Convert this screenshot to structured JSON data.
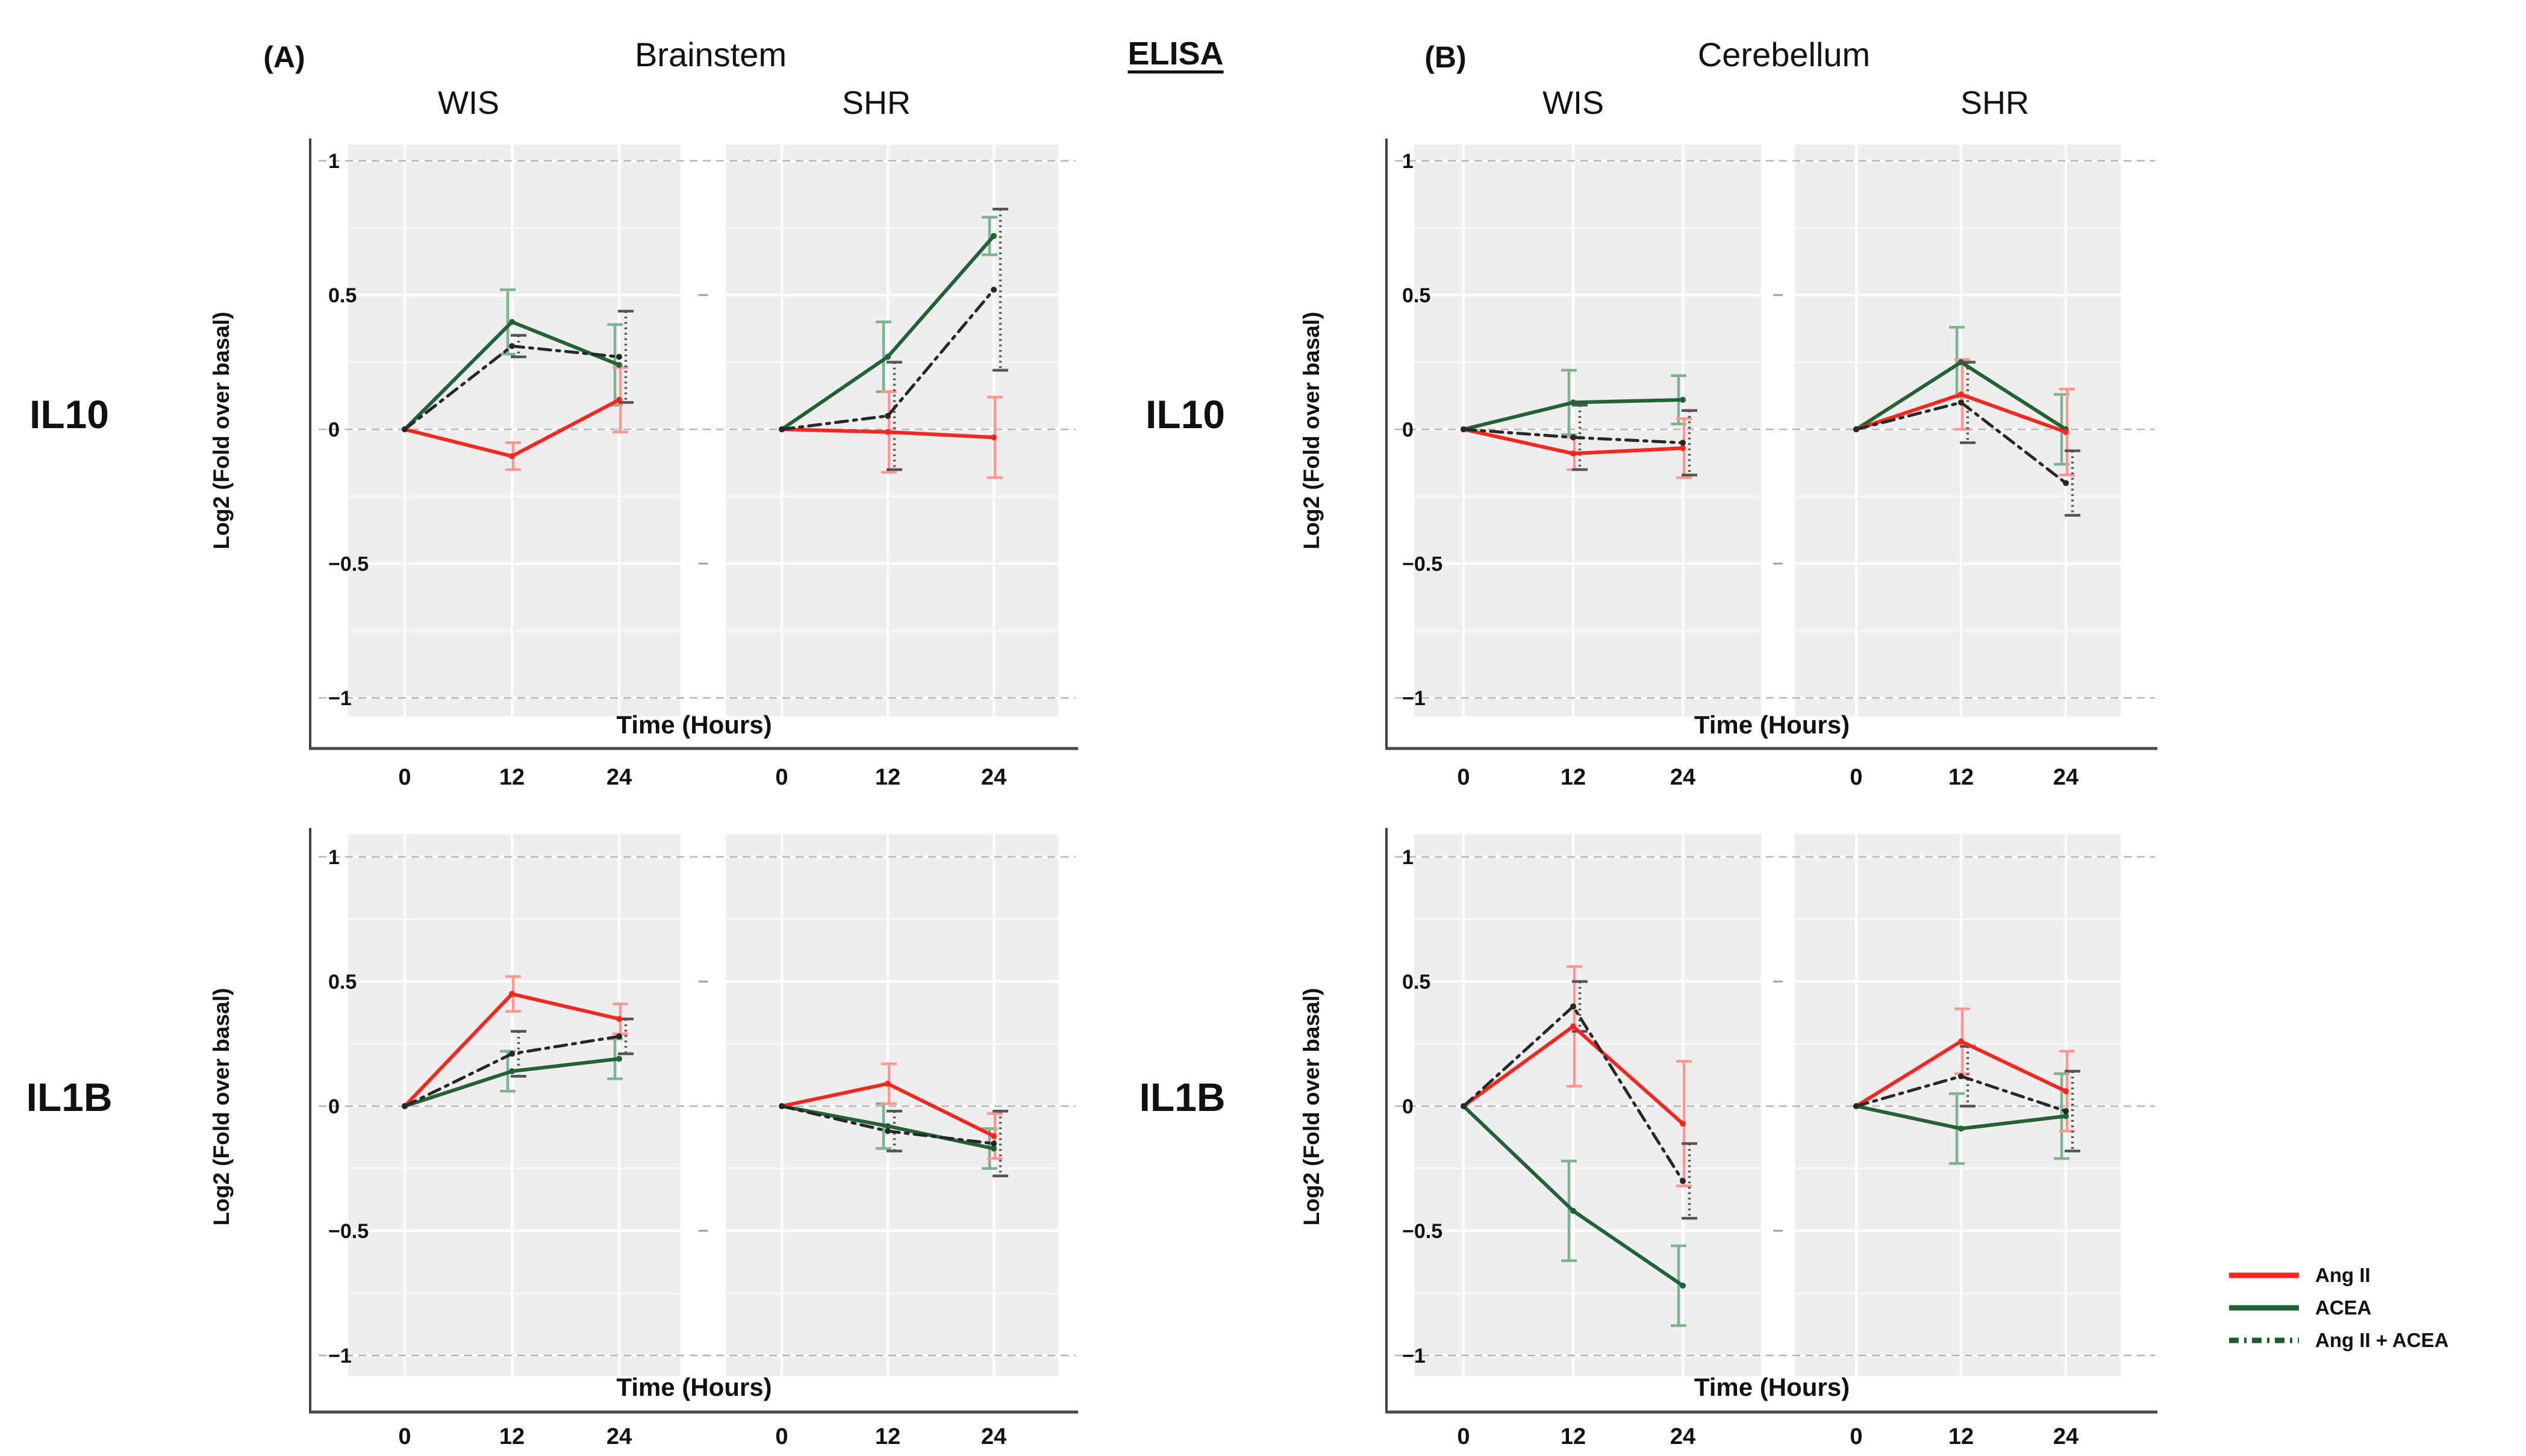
{
  "figure": {
    "panel_a_label": "(A)",
    "panel_b_label": "(B)",
    "title_a": "Brainstem",
    "title_b": "Cerebellum",
    "method_label": "ELISA",
    "col_labels": [
      "WIS",
      "SHR"
    ],
    "row_labels": [
      "IL10",
      "IL1B"
    ],
    "ylabel": "Log2 (Fold over basal)",
    "xlabel": "Time (Hours)",
    "x_ticks": [
      "0",
      "12",
      "24"
    ],
    "y_ticks": [
      "1",
      "0.5",
      "0",
      "−0.5",
      "−1"
    ]
  },
  "legend": {
    "items": [
      {
        "label": "Ang II",
        "key": "angii",
        "style": "solid"
      },
      {
        "label": "ACEA",
        "key": "acea",
        "style": "solid"
      },
      {
        "label": "Ang II + ACEA",
        "key": "combo",
        "style": "dashdot"
      }
    ]
  },
  "colors": {
    "angii": "#f7271d",
    "acea": "#226336",
    "combo": "#282828",
    "legend_combo": "#1d5c2c",
    "angii_err": "#ff978f",
    "acea_err": "#7fb38c",
    "combo_err": "#555555",
    "panel_bg": "#efeeee",
    "grid_dash": "#b3b3b3",
    "axis": "#404040",
    "text": "#111111"
  },
  "chart_data": [
    {
      "type": "line",
      "title": "Brainstem IL10",
      "region": "Brainstem",
      "cytokine": "IL10",
      "x": [
        0,
        12,
        24
      ],
      "xlabel": "Time (Hours)",
      "ylabel": "Log2 (Fold over basal)",
      "ylim": [
        -1.1,
        1.1
      ],
      "grid": true,
      "legend_position": "figure-bottom-right",
      "facets": [
        {
          "name": "WIS",
          "series": [
            {
              "key": "angii",
              "name": "Ang II",
              "values": [
                0,
                -0.1,
                0.11
              ],
              "errors": [
                0,
                0.05,
                0.12
              ]
            },
            {
              "key": "acea",
              "name": "ACEA",
              "values": [
                0,
                0.4,
                0.24
              ],
              "errors": [
                0,
                0.12,
                0.15
              ]
            },
            {
              "key": "combo",
              "name": "Ang II + ACEA",
              "values": [
                0,
                0.31,
                0.27
              ],
              "errors": [
                0,
                0.04,
                0.17
              ]
            }
          ]
        },
        {
          "name": "SHR",
          "series": [
            {
              "key": "angii",
              "name": "Ang II",
              "values": [
                0,
                -0.01,
                -0.03
              ],
              "errors": [
                0,
                0.15,
                0.15
              ]
            },
            {
              "key": "acea",
              "name": "ACEA",
              "values": [
                0,
                0.27,
                0.72
              ],
              "errors": [
                0,
                0.13,
                0.07
              ]
            },
            {
              "key": "combo",
              "name": "Ang II + ACEA",
              "values": [
                0,
                0.05,
                0.52
              ],
              "errors": [
                0,
                0.2,
                0.3
              ]
            }
          ]
        }
      ]
    },
    {
      "type": "line",
      "title": "Brainstem IL1B",
      "region": "Brainstem",
      "cytokine": "IL1B",
      "x": [
        0,
        12,
        24
      ],
      "xlabel": "Time (Hours)",
      "ylabel": "Log2 (Fold over basal)",
      "ylim": [
        -1.1,
        1.1
      ],
      "grid": true,
      "facets": [
        {
          "name": "WIS",
          "series": [
            {
              "key": "angii",
              "name": "Ang II",
              "values": [
                0,
                0.45,
                0.35
              ],
              "errors": [
                0,
                0.07,
                0.06
              ]
            },
            {
              "key": "acea",
              "name": "ACEA",
              "values": [
                0,
                0.14,
                0.19
              ],
              "errors": [
                0,
                0.08,
                0.08
              ]
            },
            {
              "key": "combo",
              "name": "Ang II + ACEA",
              "values": [
                0,
                0.21,
                0.28
              ],
              "errors": [
                0,
                0.09,
                0.07
              ]
            }
          ]
        },
        {
          "name": "SHR",
          "series": [
            {
              "key": "angii",
              "name": "Ang II",
              "values": [
                0,
                0.09,
                -0.12
              ],
              "errors": [
                0,
                0.08,
                0.09
              ]
            },
            {
              "key": "acea",
              "name": "ACEA",
              "values": [
                0,
                -0.08,
                -0.17
              ],
              "errors": [
                0,
                0.09,
                0.08
              ]
            },
            {
              "key": "combo",
              "name": "Ang II + ACEA",
              "values": [
                0,
                -0.1,
                -0.15
              ],
              "errors": [
                0,
                0.08,
                0.13
              ]
            }
          ]
        }
      ]
    },
    {
      "type": "line",
      "title": "Cerebellum IL10",
      "region": "Cerebellum",
      "cytokine": "IL10",
      "x": [
        0,
        12,
        24
      ],
      "xlabel": "Time (Hours)",
      "ylabel": "Log2 (Fold over basal)",
      "ylim": [
        -1.1,
        1.1
      ],
      "grid": true,
      "facets": [
        {
          "name": "WIS",
          "series": [
            {
              "key": "angii",
              "name": "Ang II",
              "values": [
                0,
                -0.09,
                -0.07
              ],
              "errors": [
                0,
                0.06,
                0.11
              ]
            },
            {
              "key": "acea",
              "name": "ACEA",
              "values": [
                0,
                0.1,
                0.11
              ],
              "errors": [
                0,
                0.12,
                0.09
              ]
            },
            {
              "key": "combo",
              "name": "Ang II + ACEA",
              "values": [
                0,
                -0.03,
                -0.05
              ],
              "errors": [
                0,
                0.12,
                0.12
              ]
            }
          ]
        },
        {
          "name": "SHR",
          "series": [
            {
              "key": "angii",
              "name": "Ang II",
              "values": [
                0,
                0.13,
                -0.01
              ],
              "errors": [
                0,
                0.13,
                0.16
              ]
            },
            {
              "key": "acea",
              "name": "ACEA",
              "values": [
                0,
                0.25,
                0.0
              ],
              "errors": [
                0,
                0.13,
                0.13
              ]
            },
            {
              "key": "combo",
              "name": "Ang II + ACEA",
              "values": [
                0,
                0.1,
                -0.2
              ],
              "errors": [
                0,
                0.15,
                0.12
              ]
            }
          ]
        }
      ]
    },
    {
      "type": "line",
      "title": "Cerebellum IL1B",
      "region": "Cerebellum",
      "cytokine": "IL1B",
      "x": [
        0,
        12,
        24
      ],
      "xlabel": "Time (Hours)",
      "ylabel": "Log2 (Fold over basal)",
      "ylim": [
        -1.1,
        1.1
      ],
      "grid": true,
      "facets": [
        {
          "name": "WIS",
          "series": [
            {
              "key": "angii",
              "name": "Ang II",
              "values": [
                0,
                0.32,
                -0.07
              ],
              "errors": [
                0,
                0.24,
                0.25
              ]
            },
            {
              "key": "acea",
              "name": "ACEA",
              "values": [
                0,
                -0.42,
                -0.72
              ],
              "errors": [
                0,
                0.2,
                0.16
              ]
            },
            {
              "key": "combo",
              "name": "Ang II + ACEA",
              "values": [
                0,
                0.4,
                -0.3
              ],
              "errors": [
                0,
                0.1,
                0.15
              ]
            }
          ]
        },
        {
          "name": "SHR",
          "series": [
            {
              "key": "angii",
              "name": "Ang II",
              "values": [
                0,
                0.26,
                0.06
              ],
              "errors": [
                0,
                0.13,
                0.16
              ]
            },
            {
              "key": "acea",
              "name": "ACEA",
              "values": [
                0,
                -0.09,
                -0.04
              ],
              "errors": [
                0,
                0.14,
                0.17
              ]
            },
            {
              "key": "combo",
              "name": "Ang II + ACEA",
              "values": [
                0,
                0.12,
                -0.02
              ],
              "errors": [
                0,
                0.12,
                0.16
              ]
            }
          ]
        }
      ]
    }
  ]
}
